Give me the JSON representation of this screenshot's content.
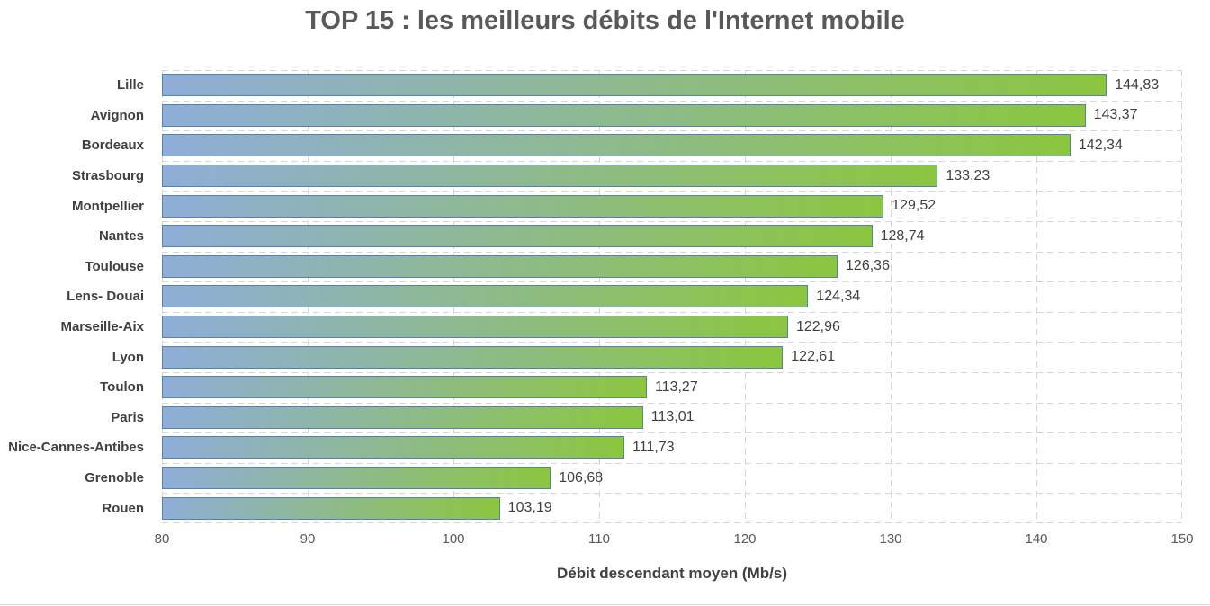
{
  "title": "TOP 15 : les meilleurs débits de l'Internet mobile",
  "chart_data": {
    "type": "bar",
    "orientation": "horizontal",
    "title": "TOP 15 : les meilleurs débits de l'Internet mobile",
    "categories": [
      "Lille",
      "Avignon",
      "Bordeaux",
      "Strasbourg",
      "Montpellier",
      "Nantes",
      "Toulouse",
      "Lens- Douai",
      "Marseille-Aix",
      "Lyon",
      "Toulon",
      "Paris",
      "Nice-Cannes-Antibes",
      "Grenoble",
      "Rouen"
    ],
    "values": [
      144.83,
      143.37,
      142.34,
      133.23,
      129.52,
      128.74,
      126.36,
      124.34,
      122.96,
      122.61,
      113.27,
      113.01,
      111.73,
      106.68,
      103.19
    ],
    "value_labels": [
      "144,83",
      "143,37",
      "142,34",
      "133,23",
      "129,52",
      "128,74",
      "126,36",
      "124,34",
      "122,96",
      "122,61",
      "113,27",
      "113,01",
      "111,73",
      "106,68",
      "103,19"
    ],
    "xlabel": "Débit descendant moyen (Mb/s)",
    "ylabel": "",
    "xlim": [
      80,
      150
    ],
    "xticks": [
      80,
      90,
      100,
      110,
      120,
      130,
      140,
      150
    ],
    "xtick_labels": [
      "80",
      "90",
      "100",
      "110",
      "120",
      "130",
      "140",
      "150"
    ],
    "grid": "dashed",
    "legend": "none"
  },
  "colors": {
    "background": "#ffffff",
    "title": "#595959",
    "category_label": "#404040",
    "value_label": "#3f3f3f",
    "tick_label": "#595959",
    "axis_title": "#404040",
    "grid": "#d6d6d6",
    "bar_gradient_start": "#8FAED8",
    "bar_gradient_end": "#8CC63F",
    "bar_border": "#5580B0",
    "bottom_edge": "#e0e0e0"
  }
}
